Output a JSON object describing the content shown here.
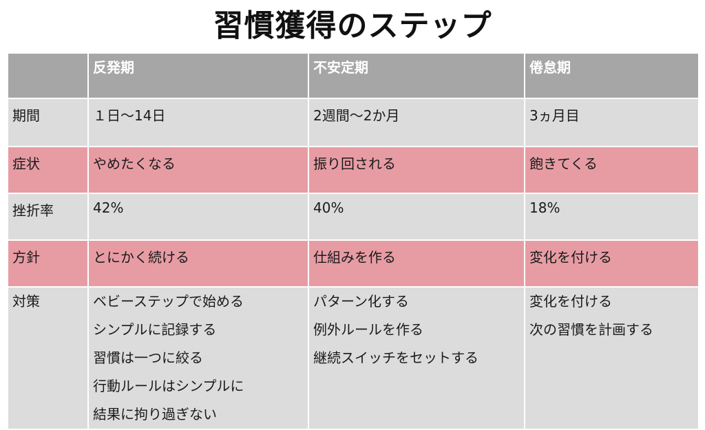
{
  "title": "習慣獲得のステップ",
  "columns": [
    "",
    "反発期",
    "不安定期",
    "倦怠期"
  ],
  "rows": [
    {
      "label": "期間",
      "cells": [
        "１日〜14日",
        "2週間〜2か月",
        "3ヵ月目"
      ]
    },
    {
      "label": "症状",
      "cells": [
        "やめたくなる",
        "振り回される",
        "飽きてくる"
      ]
    },
    {
      "label": "挫折率",
      "cells": [
        "42%",
        "40%",
        "18%"
      ]
    },
    {
      "label": "方針",
      "cells": [
        "とにかく続ける",
        "仕組みを作る",
        "変化を付ける"
      ]
    },
    {
      "label": "対策",
      "cells": [
        [
          "ベビーステップで始める",
          "シンプルに記録する",
          "習慣は一つに絞る",
          "行動ルールはシンプルに",
          "結果に拘り過ぎない"
        ],
        [
          "パターン化する",
          "例外ルールを作る",
          "継続スイッチをセットする"
        ],
        [
          "変化を付ける",
          "次の習慣を計画する"
        ]
      ]
    }
  ],
  "colors": {
    "header": "#a6a6a6",
    "gray_row": "#dcdcdc",
    "pink_row": "#e79ca4"
  }
}
